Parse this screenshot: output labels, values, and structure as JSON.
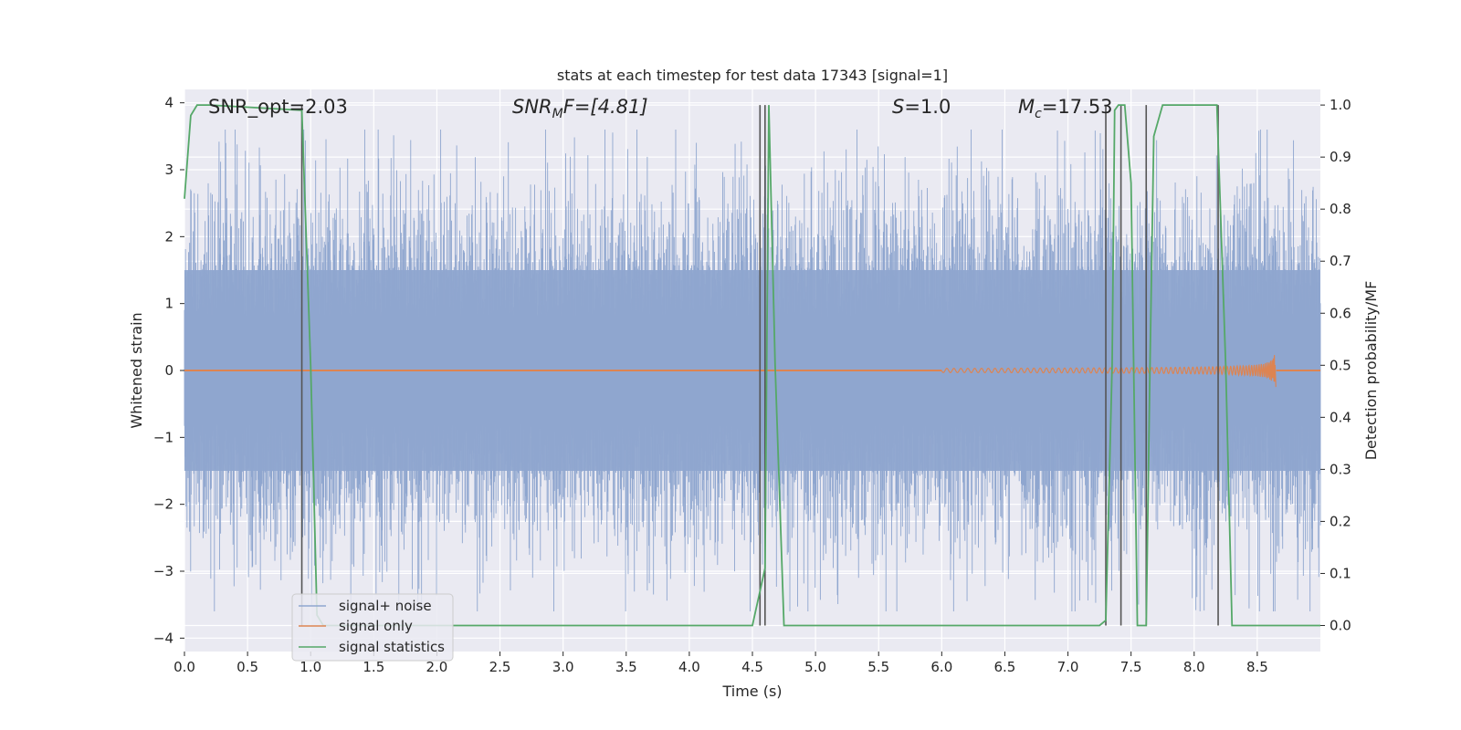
{
  "chart_data": {
    "type": "line",
    "title": "stats at each timestep for test data 17343 [signal=1]",
    "xlabel": "Time (s)",
    "ylabel_left": "Whitened strain",
    "ylabel_right": "Detection probability/MF",
    "xlim": [
      0.0,
      9.0
    ],
    "ylim_left": [
      -4.2,
      4.2
    ],
    "ylim_right": [
      -0.05,
      1.03
    ],
    "x_ticks": [
      "0.0",
      "0.5",
      "1.0",
      "1.5",
      "2.0",
      "2.5",
      "3.0",
      "3.5",
      "4.0",
      "4.5",
      "5.0",
      "5.5",
      "6.0",
      "6.5",
      "7.0",
      "7.5",
      "8.0",
      "8.5"
    ],
    "y_ticks_left": [
      "4",
      "3",
      "2",
      "1",
      "0",
      "−1",
      "−2",
      "−3",
      "−4"
    ],
    "y_ticks_right": [
      "1.0",
      "0.9",
      "0.8",
      "0.7",
      "0.6",
      "0.5",
      "0.4",
      "0.3",
      "0.2",
      "0.1",
      "0.0"
    ],
    "grid": true,
    "legend_position": "lower-left",
    "annotations": {
      "snr_opt": "SNR_opt=2.03",
      "snr_mf_main": "SNR",
      "snr_mf_sub": "M",
      "snr_mf_rest": "F=[4.81]",
      "s_main": "S",
      "s_rest": "=1.0",
      "mc_main": "M",
      "mc_sub": "c",
      "mc_rest": "=17.53"
    },
    "series": [
      {
        "name": "signal+ noise",
        "color": "#8fa6cf",
        "description_values": "noise, amplitude approx ±1.5 with spikes to ±3.5"
      },
      {
        "name": "signal only",
        "color": "#dd8452",
        "chirp": {
          "t_start": 6.0,
          "t_merger": 8.65,
          "peak_amp": 0.4
        }
      },
      {
        "name": "signal statistics",
        "color": "#55a868",
        "x": [
          0.0,
          0.05,
          0.1,
          0.2,
          0.93,
          1.0,
          1.05,
          1.1,
          2.3,
          4.5,
          4.6,
          4.63,
          4.68,
          4.75,
          7.25,
          7.3,
          7.35,
          7.37,
          7.4,
          7.45,
          7.5,
          7.55,
          7.58,
          7.62,
          7.65,
          7.68,
          7.75,
          8.18,
          8.25,
          8.3,
          9.0
        ],
        "y": [
          0.82,
          0.98,
          1.0,
          1.0,
          0.99,
          0.5,
          0.02,
          0.0,
          0.0,
          0.0,
          0.11,
          1.0,
          0.5,
          0.0,
          0.0,
          0.01,
          0.5,
          0.99,
          1.0,
          1.0,
          0.85,
          0.0,
          0.0,
          0.0,
          0.5,
          0.94,
          1.0,
          1.0,
          0.5,
          0.0,
          0.0
        ]
      }
    ],
    "detection_lines_x": [
      0.93,
      4.56,
      4.6,
      7.3,
      7.42,
      7.62,
      8.19
    ]
  }
}
